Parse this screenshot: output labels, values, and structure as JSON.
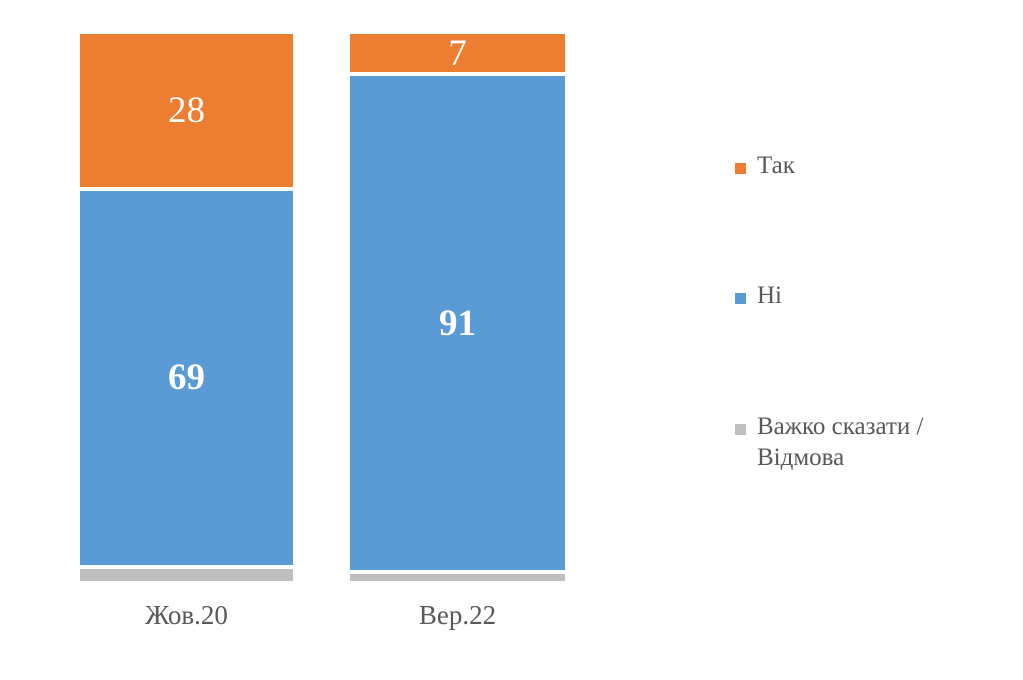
{
  "chart_data": {
    "type": "bar",
    "variant": "stacked-column-100",
    "title": "",
    "categories": [
      "Жов.20",
      "Вер.22"
    ],
    "series": [
      {
        "name": "Так",
        "color": "#ED7D31",
        "values": [
          28,
          7
        ],
        "labels_visible": true,
        "labels_bold": false
      },
      {
        "name": "Ні",
        "color": "#5B9BD5",
        "values": [
          69,
          91
        ],
        "labels_visible": true,
        "labels_bold": true
      },
      {
        "name": "Важко сказати / Відмова",
        "color": "#BFBFBF",
        "values": [
          3,
          2
        ],
        "labels_visible": false,
        "labels_bold": false
      }
    ],
    "ylim": [
      0,
      100
    ],
    "grid": false,
    "axis_line": false,
    "legend_position": "right",
    "data_label_color": "#FFFFFF",
    "axis_text_color": "#595959",
    "legend_text_color": "#595959",
    "background": "#FFFFFF"
  }
}
